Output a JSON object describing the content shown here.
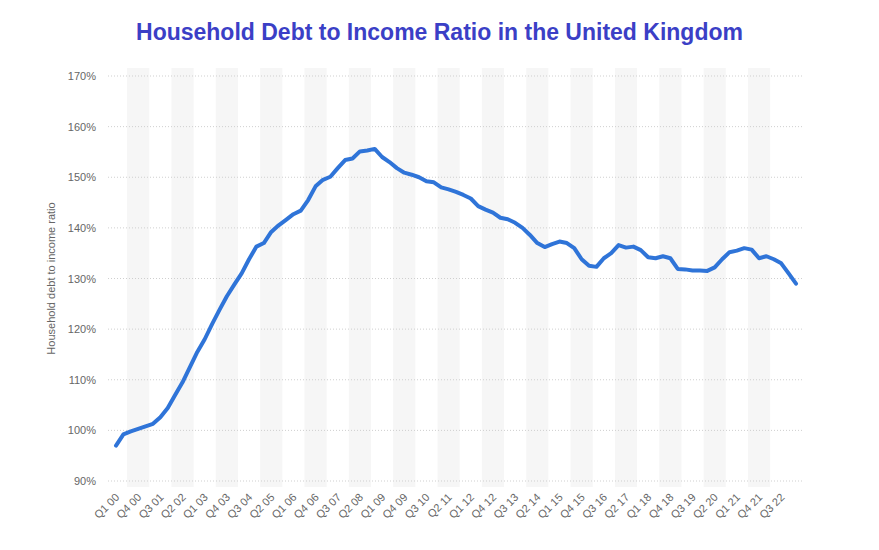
{
  "chart_data": {
    "type": "line",
    "title": "Household Debt to Income Ratio in the United Kingdom",
    "y_label": "Household debt to income ratio",
    "categories": [
      "Q1 00",
      null,
      null,
      "Q4 00",
      null,
      null,
      "Q3 01",
      null,
      null,
      "Q2 02",
      null,
      null,
      "Q1 03",
      null,
      null,
      "Q4 03",
      null,
      null,
      "Q3 04",
      null,
      null,
      "Q2 05",
      null,
      null,
      "Q1 06",
      null,
      null,
      "Q4 06",
      null,
      null,
      "Q3 07",
      null,
      null,
      "Q2 08",
      null,
      null,
      "Q1 09",
      null,
      null,
      "Q4 09",
      null,
      null,
      "Q3 10",
      null,
      null,
      "Q2 11",
      null,
      null,
      "Q1 12",
      null,
      null,
      "Q4 12",
      null,
      null,
      "Q3 13",
      null,
      null,
      "Q2 14",
      null,
      null,
      "Q1 15",
      null,
      null,
      "Q4 15",
      null,
      null,
      "Q3 16",
      null,
      null,
      "Q2 17",
      null,
      null,
      "Q1 18",
      null,
      null,
      "Q4 18",
      null,
      null,
      "Q3 19",
      null,
      null,
      "Q2 20",
      null,
      null,
      "Q1 21",
      null,
      null,
      "Q4 21",
      null,
      null,
      "Q3 22",
      null,
      null
    ],
    "values": [
      97.0,
      99.2,
      99.8,
      100.3,
      100.8,
      101.3,
      102.6,
      104.4,
      107.0,
      109.5,
      112.5,
      115.5,
      118.0,
      121.0,
      123.8,
      126.5,
      128.8,
      131.0,
      133.8,
      136.3,
      137.0,
      139.2,
      140.5,
      141.6,
      142.7,
      143.4,
      145.5,
      148.2,
      149.5,
      150.1,
      151.8,
      153.4,
      153.7,
      155.1,
      155.3,
      155.6,
      154.0,
      153.0,
      151.8,
      150.9,
      150.5,
      150.0,
      149.2,
      149.0,
      148.0,
      147.6,
      147.1,
      146.5,
      145.8,
      144.3,
      143.6,
      143.0,
      142.0,
      141.7,
      141.0,
      140.0,
      138.6,
      137.0,
      136.2,
      136.8,
      137.3,
      137.0,
      136.0,
      133.8,
      132.5,
      132.3,
      134.0,
      135.0,
      136.6,
      136.1,
      136.3,
      135.6,
      134.2,
      134.0,
      134.4,
      134.0,
      131.9,
      131.8,
      131.6,
      131.6,
      131.5,
      132.2,
      133.8,
      135.2,
      135.5,
      136.0,
      135.7,
      134.0,
      134.4,
      133.8,
      133.0,
      131.0,
      129.0
    ],
    "color": "#2f74d8",
    "ylim": [
      90,
      170
    ],
    "yticks": [
      {
        "value": 90,
        "label": "90%"
      },
      {
        "value": 100,
        "label": "100%"
      },
      {
        "value": 110,
        "label": "110%"
      },
      {
        "value": 120,
        "label": "120%"
      },
      {
        "value": 130,
        "label": "130%"
      },
      {
        "value": 140,
        "label": "140%"
      },
      {
        "value": 150,
        "label": "150%"
      },
      {
        "value": 160,
        "label": "160%"
      },
      {
        "value": 170,
        "label": "170%"
      }
    ],
    "grid": true
  }
}
